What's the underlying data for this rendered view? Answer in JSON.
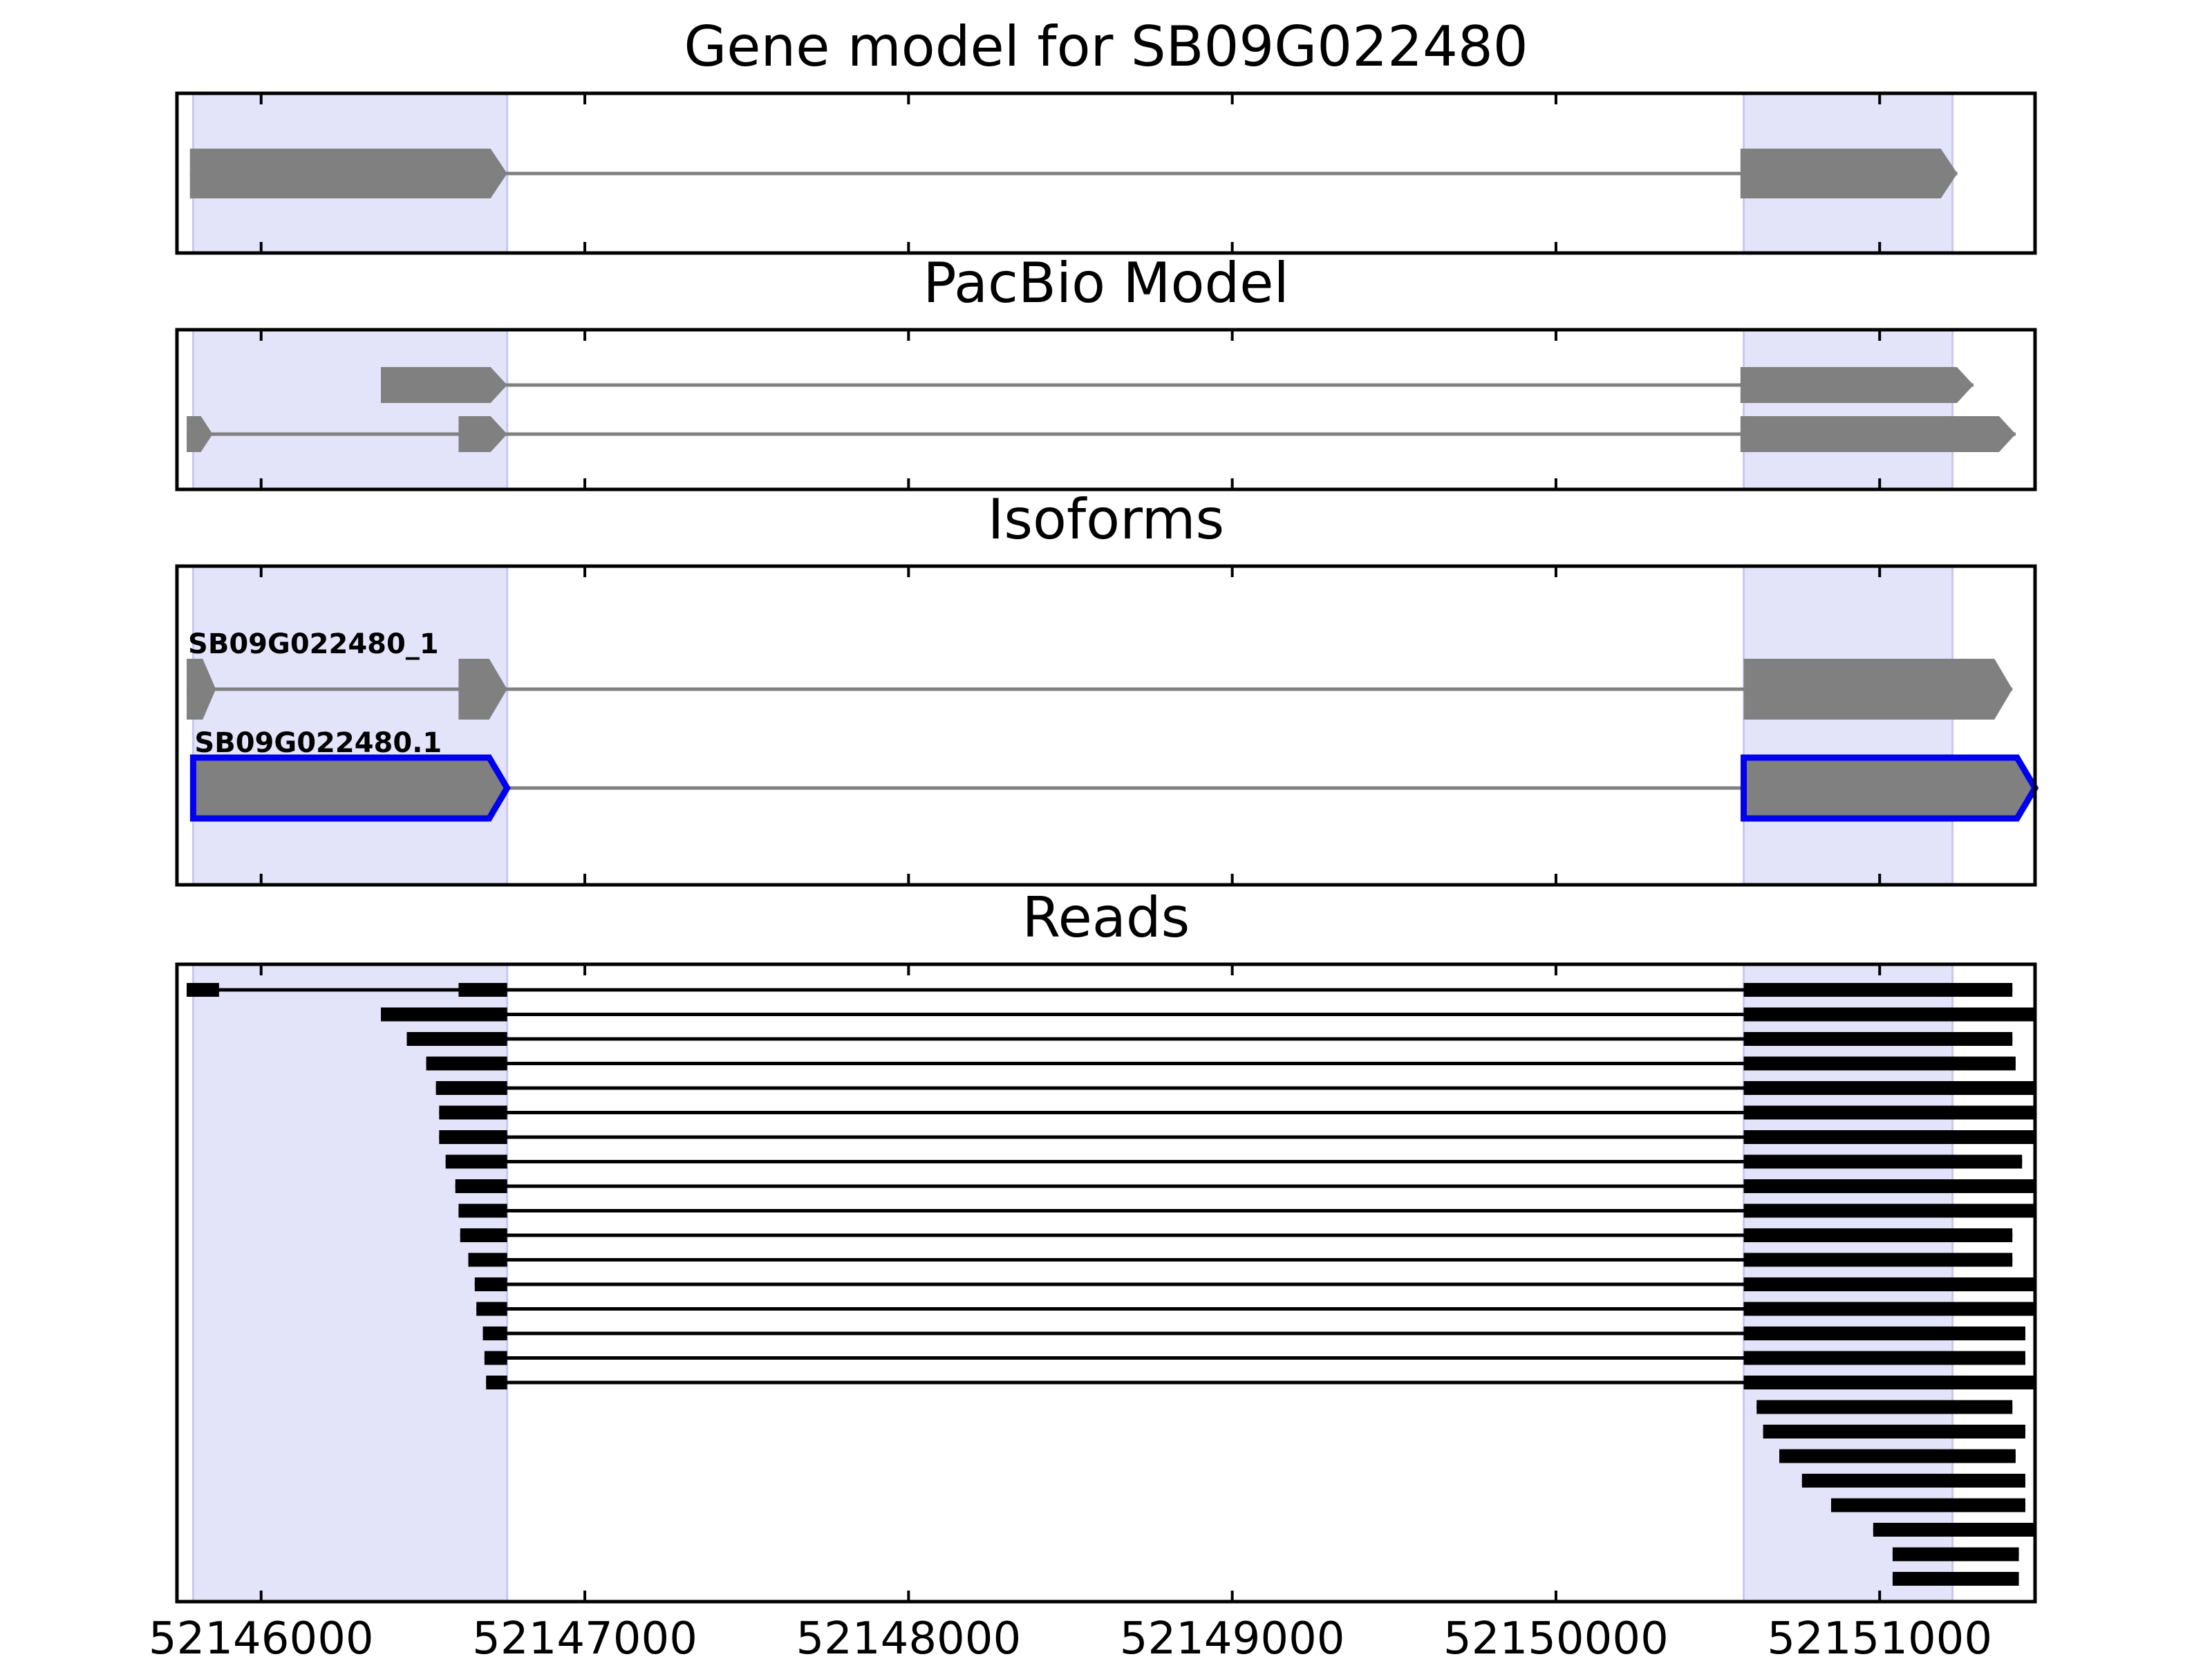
{
  "colors": {
    "highlight": "#e3e3fa",
    "highlight_edge": "#c8c8f0",
    "feature": "#808080",
    "read": "#000000",
    "selected_outline": "#0000ee",
    "axes": "#000000"
  },
  "x_axis": {
    "range": [
      52145740,
      52151480
    ],
    "ticks": [
      52146000,
      52147000,
      52148000,
      52149000,
      52150000,
      52151000
    ],
    "tick_labels": [
      "52146000",
      "52147000",
      "52148000",
      "52149000",
      "52150000",
      "52151000"
    ]
  },
  "highlight_regions": [
    [
      52145790,
      52146760
    ],
    [
      52150580,
      52151225
    ]
  ],
  "chart_data": [
    {
      "type": "gene_track",
      "title": "Gene model for SB09G022480",
      "transcripts": [
        {
          "exons": [
            [
              52145780,
              52146760
            ],
            [
              52150570,
              52151240
            ]
          ]
        }
      ]
    },
    {
      "type": "gene_track",
      "title": "PacBio Model",
      "transcripts": [
        {
          "exons": [
            [
              52146370,
              52146760
            ],
            [
              52150570,
              52151290
            ]
          ]
        },
        {
          "exons": [
            [
              52145770,
              52145850
            ],
            [
              52146610,
              52146760
            ],
            [
              52150570,
              52151420
            ]
          ]
        }
      ]
    },
    {
      "type": "gene_track",
      "title": "Isoforms",
      "transcripts": [
        {
          "label": "SB09G022480_1",
          "exons": [
            [
              52145770,
              52145860
            ],
            [
              52146610,
              52146760
            ],
            [
              52150580,
              52151410
            ]
          ]
        },
        {
          "label": "SB09G022480.1",
          "selected": true,
          "exons": [
            [
              52145790,
              52146760
            ],
            [
              52150580,
              52151480
            ]
          ]
        }
      ]
    },
    {
      "type": "reads",
      "title": "Reads",
      "reads": [
        [
          [
            52145770,
            52145870
          ],
          [
            52146610,
            52146760
          ],
          [
            52150580,
            52151410
          ]
        ],
        [
          [
            52146370,
            52146760
          ],
          [
            52150580,
            52151480
          ]
        ],
        [
          [
            52146450,
            52146760
          ],
          [
            52150580,
            52151410
          ]
        ],
        [
          [
            52146510,
            52146760
          ],
          [
            52150580,
            52151420
          ]
        ],
        [
          [
            52146540,
            52146760
          ],
          [
            52150580,
            52151480
          ]
        ],
        [
          [
            52146550,
            52146760
          ],
          [
            52150580,
            52151480
          ]
        ],
        [
          [
            52146550,
            52146760
          ],
          [
            52150580,
            52151480
          ]
        ],
        [
          [
            52146570,
            52146760
          ],
          [
            52150580,
            52151440
          ]
        ],
        [
          [
            52146600,
            52146760
          ],
          [
            52150580,
            52151480
          ]
        ],
        [
          [
            52146610,
            52146760
          ],
          [
            52150580,
            52151480
          ]
        ],
        [
          [
            52146615,
            52146760
          ],
          [
            52150580,
            52151410
          ]
        ],
        [
          [
            52146640,
            52146760
          ],
          [
            52150580,
            52151410
          ]
        ],
        [
          [
            52146660,
            52146760
          ],
          [
            52150580,
            52151480
          ]
        ],
        [
          [
            52146665,
            52146760
          ],
          [
            52150580,
            52151480
          ]
        ],
        [
          [
            52146685,
            52146760
          ],
          [
            52150580,
            52151450
          ]
        ],
        [
          [
            52146690,
            52146760
          ],
          [
            52150580,
            52151450
          ]
        ],
        [
          [
            52146695,
            52146760
          ],
          [
            52150580,
            52151480
          ]
        ],
        [
          [
            52150620,
            52151410
          ]
        ],
        [
          [
            52150640,
            52151450
          ]
        ],
        [
          [
            52150690,
            52151420
          ]
        ],
        [
          [
            52150760,
            52151450
          ]
        ],
        [
          [
            52150850,
            52151450
          ]
        ],
        [
          [
            52150980,
            52151480
          ]
        ],
        [
          [
            52151040,
            52151430
          ]
        ],
        [
          [
            52151040,
            52151430
          ]
        ]
      ]
    }
  ]
}
